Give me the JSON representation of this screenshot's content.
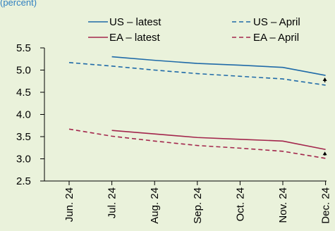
{
  "header": {
    "note": "(percent)"
  },
  "chart_data": {
    "type": "line",
    "categories": [
      "Jun. 24",
      "Jul. 24",
      "Aug. 24",
      "Sep. 24",
      "Oct. 24",
      "Nov. 24",
      "Dec. 24"
    ],
    "ylim": [
      2.5,
      5.5
    ],
    "yticks": [
      "2.5",
      "3.0",
      "3.5",
      "4.0",
      "4.5",
      "5.0",
      "5.5"
    ],
    "grid": false,
    "legend_position": "top",
    "series": [
      {
        "name": "US – latest",
        "color": "#1f6aa8",
        "dash": false,
        "values": [
          null,
          5.3,
          5.22,
          5.15,
          5.11,
          5.06,
          4.88
        ]
      },
      {
        "name": "US – April",
        "color": "#1f6aa8",
        "dash": true,
        "values": [
          5.17,
          5.09,
          5.0,
          4.92,
          4.86,
          4.8,
          4.66
        ]
      },
      {
        "name": "EA – latest",
        "color": "#a3264c",
        "dash": false,
        "values": [
          null,
          3.64,
          3.56,
          3.48,
          3.44,
          3.4,
          3.21
        ]
      },
      {
        "name": "EA – April",
        "color": "#a3264c",
        "dash": true,
        "values": [
          3.67,
          3.51,
          3.4,
          3.3,
          3.24,
          3.17,
          3.01
        ]
      }
    ]
  }
}
